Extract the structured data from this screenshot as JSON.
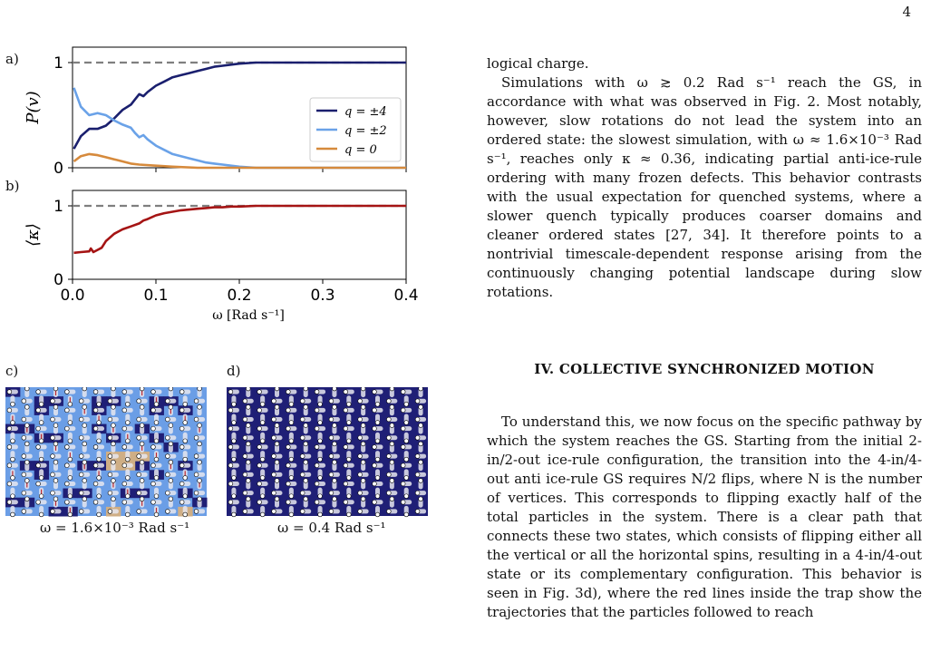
{
  "page": {
    "number": "4"
  },
  "figure": {
    "panels": {
      "a": "a)",
      "b": "b)",
      "c": "c)",
      "d": "d)"
    },
    "x_ticks": [
      "0.0",
      "0.1",
      "0.2",
      "0.3",
      "0.4"
    ],
    "x_label": "ω [Rad s⁻¹]",
    "caption_c": "ω = 1.6×10⁻³ Rad s⁻¹",
    "caption_d": "ω = 0.4 Rad s⁻¹",
    "colors": {
      "q4": "#1a1f6e",
      "q2": "#6aa2e8",
      "q0": "#d68a3c",
      "kappa": "#a51414",
      "dashed": "#7f7f7f",
      "light_blue_cell": "#6b9ee6",
      "dark_blue_cell": "#1f1f76",
      "tan_cell": "#cfae85"
    }
  },
  "chart_data": [
    {
      "type": "line",
      "title": "",
      "xlabel": "ω [Rad s⁻¹]",
      "ylabel": "P(v)",
      "xlim": [
        0,
        0.4
      ],
      "ylim": [
        0,
        1
      ],
      "y_ticks": [
        "0",
        "1"
      ],
      "legend_position": "right",
      "reference_line": 1,
      "series": [
        {
          "name": "q = ±4",
          "x": [
            0.0016,
            0.01,
            0.02,
            0.03,
            0.04,
            0.05,
            0.06,
            0.07,
            0.075,
            0.08,
            0.085,
            0.09,
            0.1,
            0.11,
            0.12,
            0.13,
            0.14,
            0.15,
            0.16,
            0.17,
            0.18,
            0.19,
            0.2,
            0.22,
            0.25,
            0.3,
            0.35,
            0.4
          ],
          "y": [
            0.18,
            0.3,
            0.37,
            0.37,
            0.4,
            0.47,
            0.55,
            0.6,
            0.65,
            0.7,
            0.68,
            0.72,
            0.78,
            0.82,
            0.86,
            0.88,
            0.9,
            0.92,
            0.94,
            0.96,
            0.97,
            0.98,
            0.99,
            1.0,
            1.0,
            1.0,
            1.0,
            1.0
          ]
        },
        {
          "name": "q = ±2",
          "x": [
            0.0016,
            0.01,
            0.02,
            0.03,
            0.04,
            0.05,
            0.06,
            0.07,
            0.075,
            0.08,
            0.085,
            0.09,
            0.1,
            0.11,
            0.12,
            0.13,
            0.14,
            0.15,
            0.16,
            0.17,
            0.18,
            0.19,
            0.2,
            0.22,
            0.25,
            0.3,
            0.35,
            0.4
          ],
          "y": [
            0.76,
            0.58,
            0.5,
            0.52,
            0.5,
            0.45,
            0.41,
            0.38,
            0.33,
            0.29,
            0.31,
            0.27,
            0.21,
            0.17,
            0.13,
            0.11,
            0.09,
            0.07,
            0.05,
            0.04,
            0.03,
            0.02,
            0.01,
            0.0,
            0.0,
            0.0,
            0.0,
            0.0
          ]
        },
        {
          "name": "q = 0",
          "x": [
            0.0016,
            0.01,
            0.02,
            0.03,
            0.04,
            0.05,
            0.06,
            0.07,
            0.08,
            0.1,
            0.12,
            0.15,
            0.2,
            0.3,
            0.4
          ],
          "y": [
            0.06,
            0.11,
            0.13,
            0.12,
            0.1,
            0.08,
            0.06,
            0.04,
            0.03,
            0.02,
            0.01,
            0.0,
            0.0,
            0.0,
            0.0
          ]
        }
      ]
    },
    {
      "type": "line",
      "title": "",
      "xlabel": "ω [Rad s⁻¹]",
      "ylabel": "⟨κ⟩",
      "xlim": [
        0,
        0.4
      ],
      "ylim": [
        0,
        1
      ],
      "y_ticks": [
        "0",
        "1"
      ],
      "reference_line": 1,
      "series": [
        {
          "name": "",
          "x": [
            0.0016,
            0.01,
            0.02,
            0.022,
            0.025,
            0.03,
            0.035,
            0.04,
            0.05,
            0.06,
            0.07,
            0.08,
            0.085,
            0.09,
            0.1,
            0.11,
            0.12,
            0.13,
            0.14,
            0.15,
            0.16,
            0.17,
            0.18,
            0.19,
            0.2,
            0.22,
            0.25,
            0.3,
            0.35,
            0.4
          ],
          "y": [
            0.36,
            0.37,
            0.38,
            0.42,
            0.37,
            0.4,
            0.43,
            0.52,
            0.62,
            0.68,
            0.72,
            0.76,
            0.8,
            0.82,
            0.87,
            0.9,
            0.92,
            0.94,
            0.95,
            0.96,
            0.97,
            0.98,
            0.98,
            0.99,
            0.99,
            1.0,
            1.0,
            1.0,
            1.0,
            1.0
          ]
        }
      ]
    }
  ],
  "text": {
    "para1_line": "logical charge.",
    "para2": "Simulations with ω ≳ 0.2 Rad s⁻¹ reach the GS, in accordance with what was observed in Fig. 2. Most notably, however, slow rotations do not lead the system into an ordered state: the slowest simulation, with ω ≈ 1.6×10⁻³ Rad s⁻¹, reaches only κ ≈ 0.36, indicating partial anti-ice-rule ordering with many frozen defects. This behavior contrasts with the usual expectation for quenched systems, where a slower quench typically produces coarser domains and cleaner ordered states [27, 34]. It therefore points to a nontrivial timescale-dependent response arising from the continuously changing potential landscape during slow rotations.",
    "section_heading": "IV.   COLLECTIVE SYNCHRONIZED MOTION",
    "para3": "To understand this, we now focus on the specific pathway by which the system reaches the GS. Starting from the initial 2-in/2-out ice-rule configuration, the transition into the 4-in/4-out anti ice-rule GS requires N/2 flips, where N is the number of vertices. This corresponds to flipping exactly half of the total particles in the system. There is a clear path that connects these two states, which consists of flipping either all the vertical or all the horizontal spins, resulting in a 4-in/4-out state or its complementary configuration. This behavior is seen in Fig. 3d), where the red lines inside the trap show the trajectories that the particles followed to reach"
  }
}
